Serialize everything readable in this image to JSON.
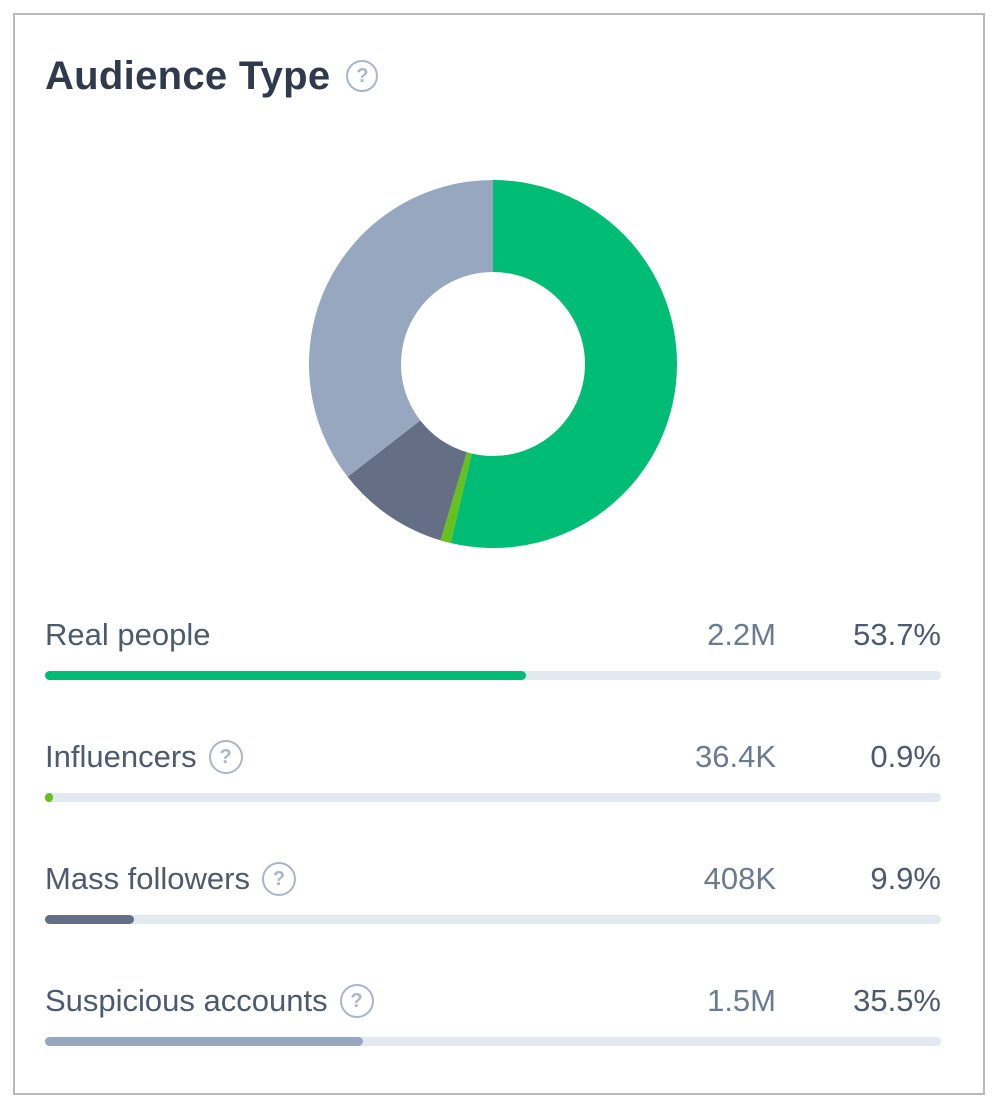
{
  "title": "Audience Type",
  "help_glyph": "?",
  "chart_data": {
    "type": "pie",
    "donut": true,
    "title": "Audience Type",
    "slices": [
      {
        "label": "Real people",
        "count": "2.2M",
        "percent_label": "53.7%",
        "value": 53.7,
        "color": "#00bc74"
      },
      {
        "label": "Influencers",
        "count": "36.4K",
        "percent_label": "0.9%",
        "value": 0.9,
        "color": "#66c11c"
      },
      {
        "label": "Mass followers",
        "count": "408K",
        "percent_label": "9.9%",
        "value": 9.9,
        "color": "#646f85"
      },
      {
        "label": "Suspicious accounts",
        "count": "1.5M",
        "percent_label": "35.5%",
        "value": 35.5,
        "color": "#98a7c0"
      }
    ]
  },
  "colors": {
    "track": "#e3e9f1",
    "title": "#2f3a4c",
    "help_icon": "#a9b6c8"
  },
  "icons": {
    "title_help": "help-circle-icon",
    "row_help": "help-circle-icon"
  }
}
